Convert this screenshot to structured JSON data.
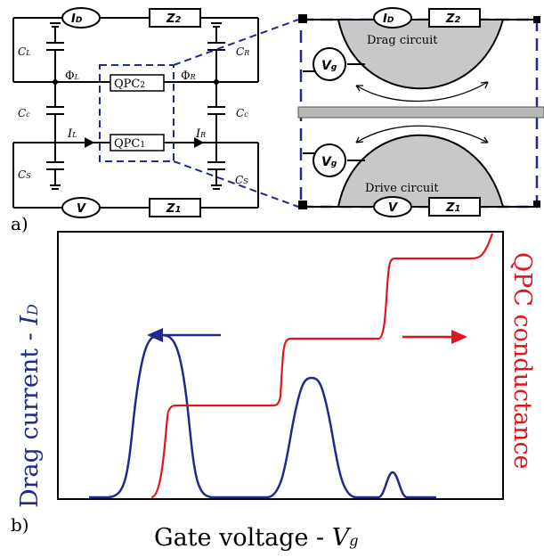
{
  "panel_a": {
    "label": "a)",
    "circuit": {
      "id_symbol": "I",
      "id_sub": "D",
      "z2": "Z",
      "z2_sub": "2",
      "z1": "Z",
      "z1_sub": "1",
      "v": "V",
      "cl": "C",
      "cl_sub": "L",
      "cr": "C",
      "cr_sub": "R",
      "cc_left": "C",
      "cc_left_sub": "c",
      "cc_right": "C",
      "cc_right_sub": "c",
      "cs_left": "C",
      "cs_left_sub": "S",
      "cs_right": "C",
      "cs_right_sub": "S",
      "phi_l": "Φ",
      "phi_l_sub": "L",
      "phi_r": "Φ",
      "phi_r_sub": "R",
      "il": "I",
      "il_sub": "L",
      "ir": "I",
      "ir_sub": "R",
      "qpc2": "QPC",
      "qpc2_sub": "2",
      "qpc1": "QPC",
      "qpc1_sub": "1"
    },
    "zoom": {
      "id_symbol": "I",
      "id_sub": "D",
      "z2": "Z",
      "z2_sub": "2",
      "z1": "Z",
      "z1_sub": "1",
      "v": "V",
      "vg_top": "V",
      "vg_top_sub": "g",
      "vg_bottom": "V",
      "vg_bottom_sub": "g",
      "drag_label": "Drag circuit",
      "drive_label": "Drive circuit"
    }
  },
  "panel_b": {
    "label": "b)",
    "left_axis_label": "Drag current - ",
    "left_axis_symbol": "I",
    "left_axis_sub": "D",
    "right_axis_label": "QPC conductance",
    "x_axis_label": "Gate voltage - ",
    "x_axis_symbol": "V",
    "x_axis_sub": "g",
    "colors": {
      "drag": "#1f2a8c",
      "conductance": "#e0161e"
    }
  }
}
